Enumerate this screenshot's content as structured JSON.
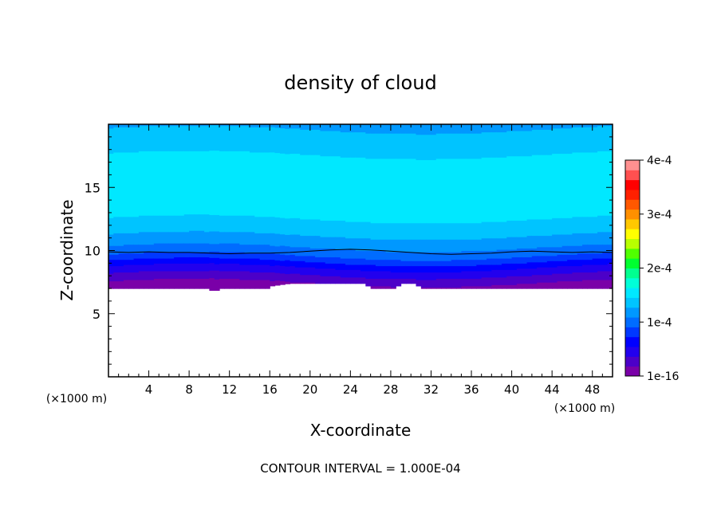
{
  "chart_data": {
    "type": "heatmap",
    "title": "density of cloud",
    "xlabel": "X-coordinate",
    "ylabel": "Z-coordinate",
    "x_unit": "(×1000 m)",
    "y_unit": "(×1000 m)",
    "xlim": [
      0,
      50
    ],
    "ylim": [
      0,
      20
    ],
    "x_ticks": [
      4,
      8,
      12,
      16,
      20,
      24,
      28,
      32,
      36,
      40,
      44,
      48
    ],
    "y_ticks": [
      5,
      10,
      15
    ],
    "footer": "CONTOUR INTERVAL = 1.000E-04",
    "colorbar": {
      "min": 1e-16,
      "max": 0.0004,
      "tick_values": [
        1e-16,
        0.0001,
        0.0002,
        0.0003,
        0.0004
      ],
      "tick_labels": [
        "1e-16",
        "1e-4",
        "2e-4",
        "3e-4",
        "4e-4"
      ],
      "colors": [
        "#7a00a8",
        "#4c00c8",
        "#2200ee",
        "#0000ff",
        "#0038ff",
        "#006cff",
        "#0098ff",
        "#00c4ff",
        "#00e8ff",
        "#00ffd8",
        "#00ff90",
        "#00ff30",
        "#50ff00",
        "#b8ff00",
        "#ffff00",
        "#ffc800",
        "#ff9000",
        "#ff5800",
        "#ff2000",
        "#ff0000",
        "#ff5050",
        "#ff9090"
      ]
    },
    "cloud_base": {
      "x": [
        0,
        10,
        10.5,
        11,
        16,
        16.2,
        18,
        25.5,
        26,
        28.5,
        29,
        30.5,
        31,
        36.5,
        43,
        44,
        50
      ],
      "z": [
        7.0,
        7.0,
        6.7,
        7.0,
        7.0,
        7.2,
        7.4,
        7.4,
        7.0,
        7.0,
        7.4,
        7.4,
        7.0,
        7.0,
        7.0,
        7.0,
        7.0
      ]
    },
    "contour_1e-4": {
      "x": [
        0,
        2,
        4,
        6,
        8,
        10,
        12,
        14,
        16,
        18,
        20,
        22,
        24,
        26,
        28,
        30,
        32,
        34,
        36,
        38,
        40,
        42,
        44,
        46,
        48,
        50
      ],
      "z": [
        9.9,
        9.85,
        9.9,
        9.85,
        9.85,
        9.8,
        9.75,
        9.8,
        9.8,
        9.85,
        9.95,
        10.05,
        10.1,
        10.05,
        9.95,
        9.85,
        9.75,
        9.7,
        9.75,
        9.8,
        9.9,
        9.95,
        9.9,
        9.85,
        9.9,
        9.85
      ]
    },
    "vertical_profile": {
      "z": [
        7.0,
        7.5,
        8.0,
        8.5,
        9.0,
        9.5,
        10.0,
        10.5,
        11.0,
        12.0,
        13.0,
        14.0,
        15.0,
        16.0,
        17.0,
        18.0,
        19.0,
        20.0
      ],
      "value": [
        1e-05,
        2e-05,
        3.5e-05,
        5e-05,
        7e-05,
        9e-05,
        0.000105,
        0.000115,
        0.000125,
        0.00014,
        0.000152,
        0.00016,
        0.000162,
        0.00016,
        0.000152,
        0.00014,
        0.00013,
        0.000125
      ]
    }
  }
}
